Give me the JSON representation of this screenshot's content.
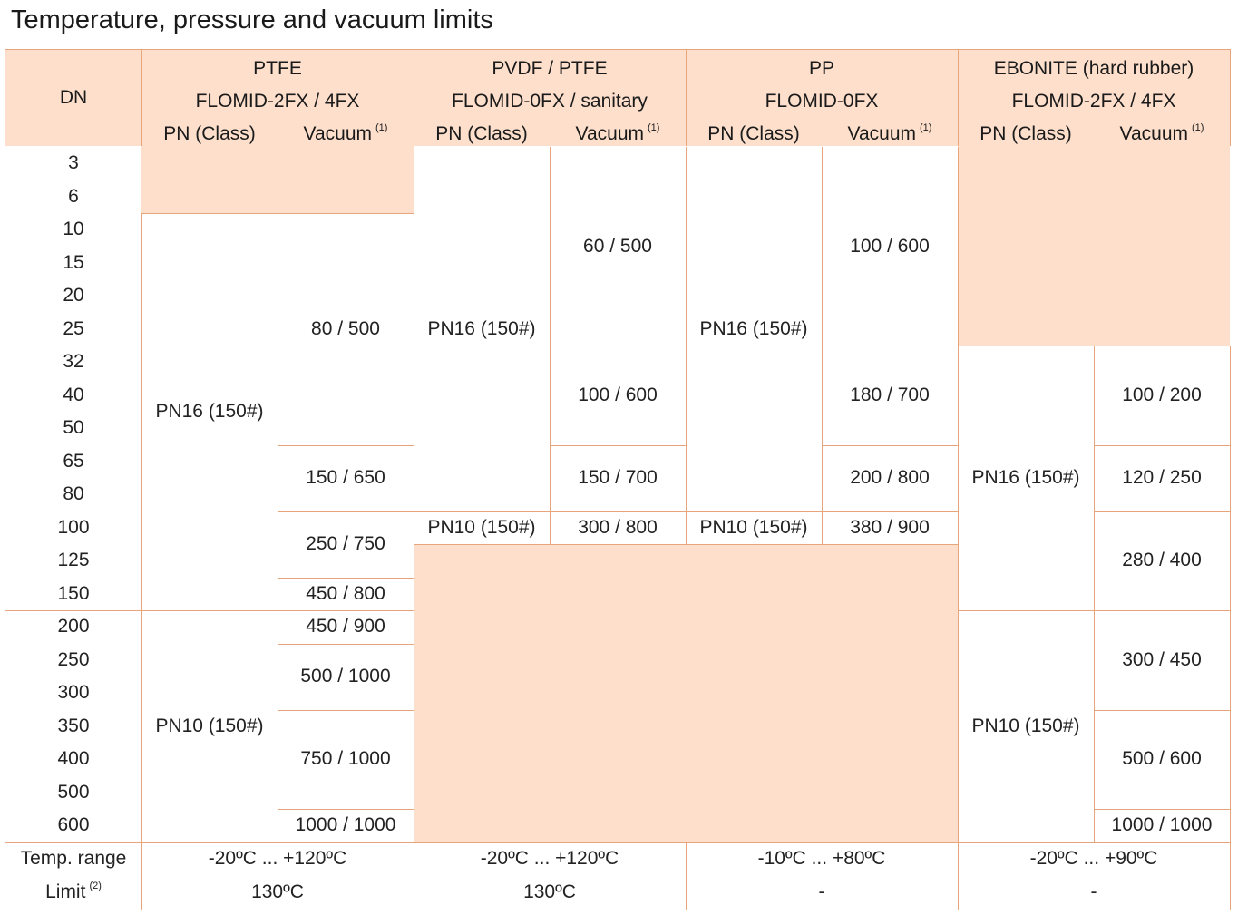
{
  "title": "Temperature, pressure and vacuum limits",
  "colors": {
    "header_fill": "#fddfcc",
    "grid_line": "#e8a57c"
  },
  "header": {
    "dn": "DN",
    "pn_class": "PN (Class)",
    "vacuum": "Vacuum",
    "vacuum_note": "(1)",
    "groups": [
      {
        "material": "PTFE",
        "model": "FLOMID-2FX / 4FX"
      },
      {
        "material": "PVDF / PTFE",
        "model": "FLOMID-0FX / sanitary"
      },
      {
        "material": "PP",
        "model": "FLOMID-0FX"
      },
      {
        "material": "EBONITE (hard rubber)",
        "model": "FLOMID-2FX / 4FX"
      }
    ]
  },
  "dn_values": [
    "3",
    "6",
    "10",
    "15",
    "20",
    "25",
    "32",
    "40",
    "50",
    "65",
    "80",
    "100",
    "125",
    "150",
    "200",
    "250",
    "300",
    "350",
    "400",
    "500",
    "600"
  ],
  "groups": [
    {
      "pn": [
        {
          "label": "PN16 (150#)",
          "from": "10",
          "to": "150"
        },
        {
          "label": "PN10 (150#)",
          "from": "200",
          "to": "600"
        }
      ],
      "vacuum": [
        {
          "label": "80 / 500",
          "from": "10",
          "to": "50"
        },
        {
          "label": "150 / 650",
          "from": "65",
          "to": "80"
        },
        {
          "label": "250 / 750",
          "from": "100",
          "to": "125"
        },
        {
          "label": "450 / 800",
          "from": "150",
          "to": "150"
        },
        {
          "label": "450 / 900",
          "from": "200",
          "to": "200"
        },
        {
          "label": "500 / 1000",
          "from": "250",
          "to": "300"
        },
        {
          "label": "750 / 1000",
          "from": "350",
          "to": "500"
        },
        {
          "label": "1000 / 1000",
          "from": "600",
          "to": "600"
        }
      ]
    },
    {
      "pn": [
        {
          "label": "PN16 (150#)",
          "from": "3",
          "to": "80"
        },
        {
          "label": "PN10 (150#)",
          "from": "100",
          "to": "100"
        }
      ],
      "vacuum": [
        {
          "label": "60 / 500",
          "from": "3",
          "to": "25"
        },
        {
          "label": "100 / 600",
          "from": "32",
          "to": "50"
        },
        {
          "label": "150 / 700",
          "from": "65",
          "to": "80"
        },
        {
          "label": "300 / 800",
          "from": "100",
          "to": "100"
        }
      ]
    },
    {
      "pn": [
        {
          "label": "PN16 (150#)",
          "from": "3",
          "to": "80"
        },
        {
          "label": "PN10 (150#)",
          "from": "100",
          "to": "100"
        }
      ],
      "vacuum": [
        {
          "label": "100 / 600",
          "from": "3",
          "to": "25"
        },
        {
          "label": "180 / 700",
          "from": "32",
          "to": "50"
        },
        {
          "label": "200 / 800",
          "from": "65",
          "to": "80"
        },
        {
          "label": "380 / 900",
          "from": "100",
          "to": "100"
        }
      ]
    },
    {
      "pn": [
        {
          "label": "PN16 (150#)",
          "from": "32",
          "to": "150"
        },
        {
          "label": "PN10 (150#)",
          "from": "200",
          "to": "600"
        }
      ],
      "vacuum": [
        {
          "label": "100 / 200",
          "from": "32",
          "to": "50"
        },
        {
          "label": "120 / 250",
          "from": "65",
          "to": "80"
        },
        {
          "label": "280 / 400",
          "from": "100",
          "to": "150"
        },
        {
          "label": "300 / 450",
          "from": "200",
          "to": "300"
        },
        {
          "label": "500 / 600",
          "from": "350",
          "to": "500"
        },
        {
          "label": "1000 / 1000",
          "from": "600",
          "to": "600"
        }
      ]
    }
  ],
  "footer": {
    "temp_label": "Temp. range",
    "limit_label": "Limit",
    "limit_note": "(2)",
    "temp_values": [
      "-20ºC ... +120ºC",
      "-20ºC ... +120ºC",
      "-10ºC ... +80ºC",
      "-20ºC ... +90ºC"
    ],
    "limit_values": [
      "130ºC",
      "130ºC",
      "-",
      "-"
    ]
  }
}
